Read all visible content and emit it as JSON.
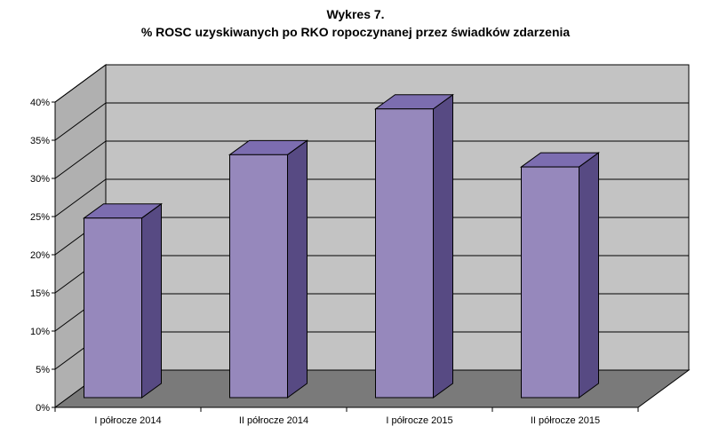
{
  "chart_data": {
    "type": "bar",
    "title": "Wykres 7.",
    "subtitle": "% ROSC uzyskiwanych po RKO ropoczynanej przez świadków zdarzenia",
    "xlabel": "",
    "ylabel": "",
    "categories": [
      "I półrocze 2014",
      "II półrocze 2014",
      "I półrocze 2015",
      "II półrocze 2015"
    ],
    "values": [
      25.5,
      33.8,
      39.8,
      32.2
    ],
    "ylim": [
      0,
      40
    ],
    "yticks": [
      "0%",
      "5%",
      "10%",
      "15%",
      "20%",
      "25%",
      "30%",
      "35%",
      "40%"
    ],
    "grid": true,
    "legend": "none",
    "style": "3d-columns",
    "colors": {
      "bar_front": "#9688bc",
      "bar_side": "#574a83",
      "bar_top": "#7c6db0",
      "wall": "#c3c3c3",
      "side_wall": "#b0b0b0",
      "floor": "#7a7a7a",
      "grid": "#000000"
    }
  }
}
